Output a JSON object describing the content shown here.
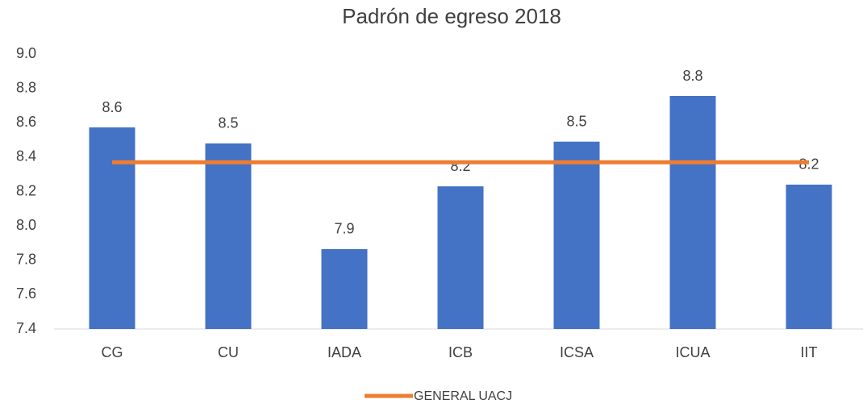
{
  "chart_data": {
    "type": "bar",
    "title": "Padrón de egreso 2018",
    "categories": [
      "CG",
      "CU",
      "IADA",
      "ICB",
      "ICSA",
      "ICUA",
      "IIT"
    ],
    "series": [
      {
        "type": "bar",
        "color": "#4472c4",
        "values": [
          8.573,
          8.48,
          7.865,
          8.23,
          8.49,
          8.756,
          8.24
        ],
        "value_labels": [
          "8.6",
          "8.5",
          "7.9",
          "8.2",
          "8.5",
          "8.8",
          "8.2"
        ]
      },
      {
        "type": "line",
        "name": "GENERAL UACJ",
        "color": "#ed7d31",
        "values": [
          8.37,
          8.37,
          8.37,
          8.37,
          8.37,
          8.37,
          8.37
        ]
      }
    ],
    "ylim": [
      7.4,
      9.0
    ],
    "yticks": [
      {
        "value": 7.4,
        "label": "7.4"
      },
      {
        "value": 7.6,
        "label": "7.6"
      },
      {
        "value": 7.8,
        "label": "7.8"
      },
      {
        "value": 8.0,
        "label": "8.0"
      },
      {
        "value": 8.2,
        "label": "8.2"
      },
      {
        "value": 8.4,
        "label": "8.4"
      },
      {
        "value": 8.6,
        "label": "8.6"
      },
      {
        "value": 8.8,
        "label": "8.8"
      },
      {
        "value": 9.0,
        "label": "9.0"
      }
    ],
    "grid": false,
    "legend": "bottom"
  }
}
